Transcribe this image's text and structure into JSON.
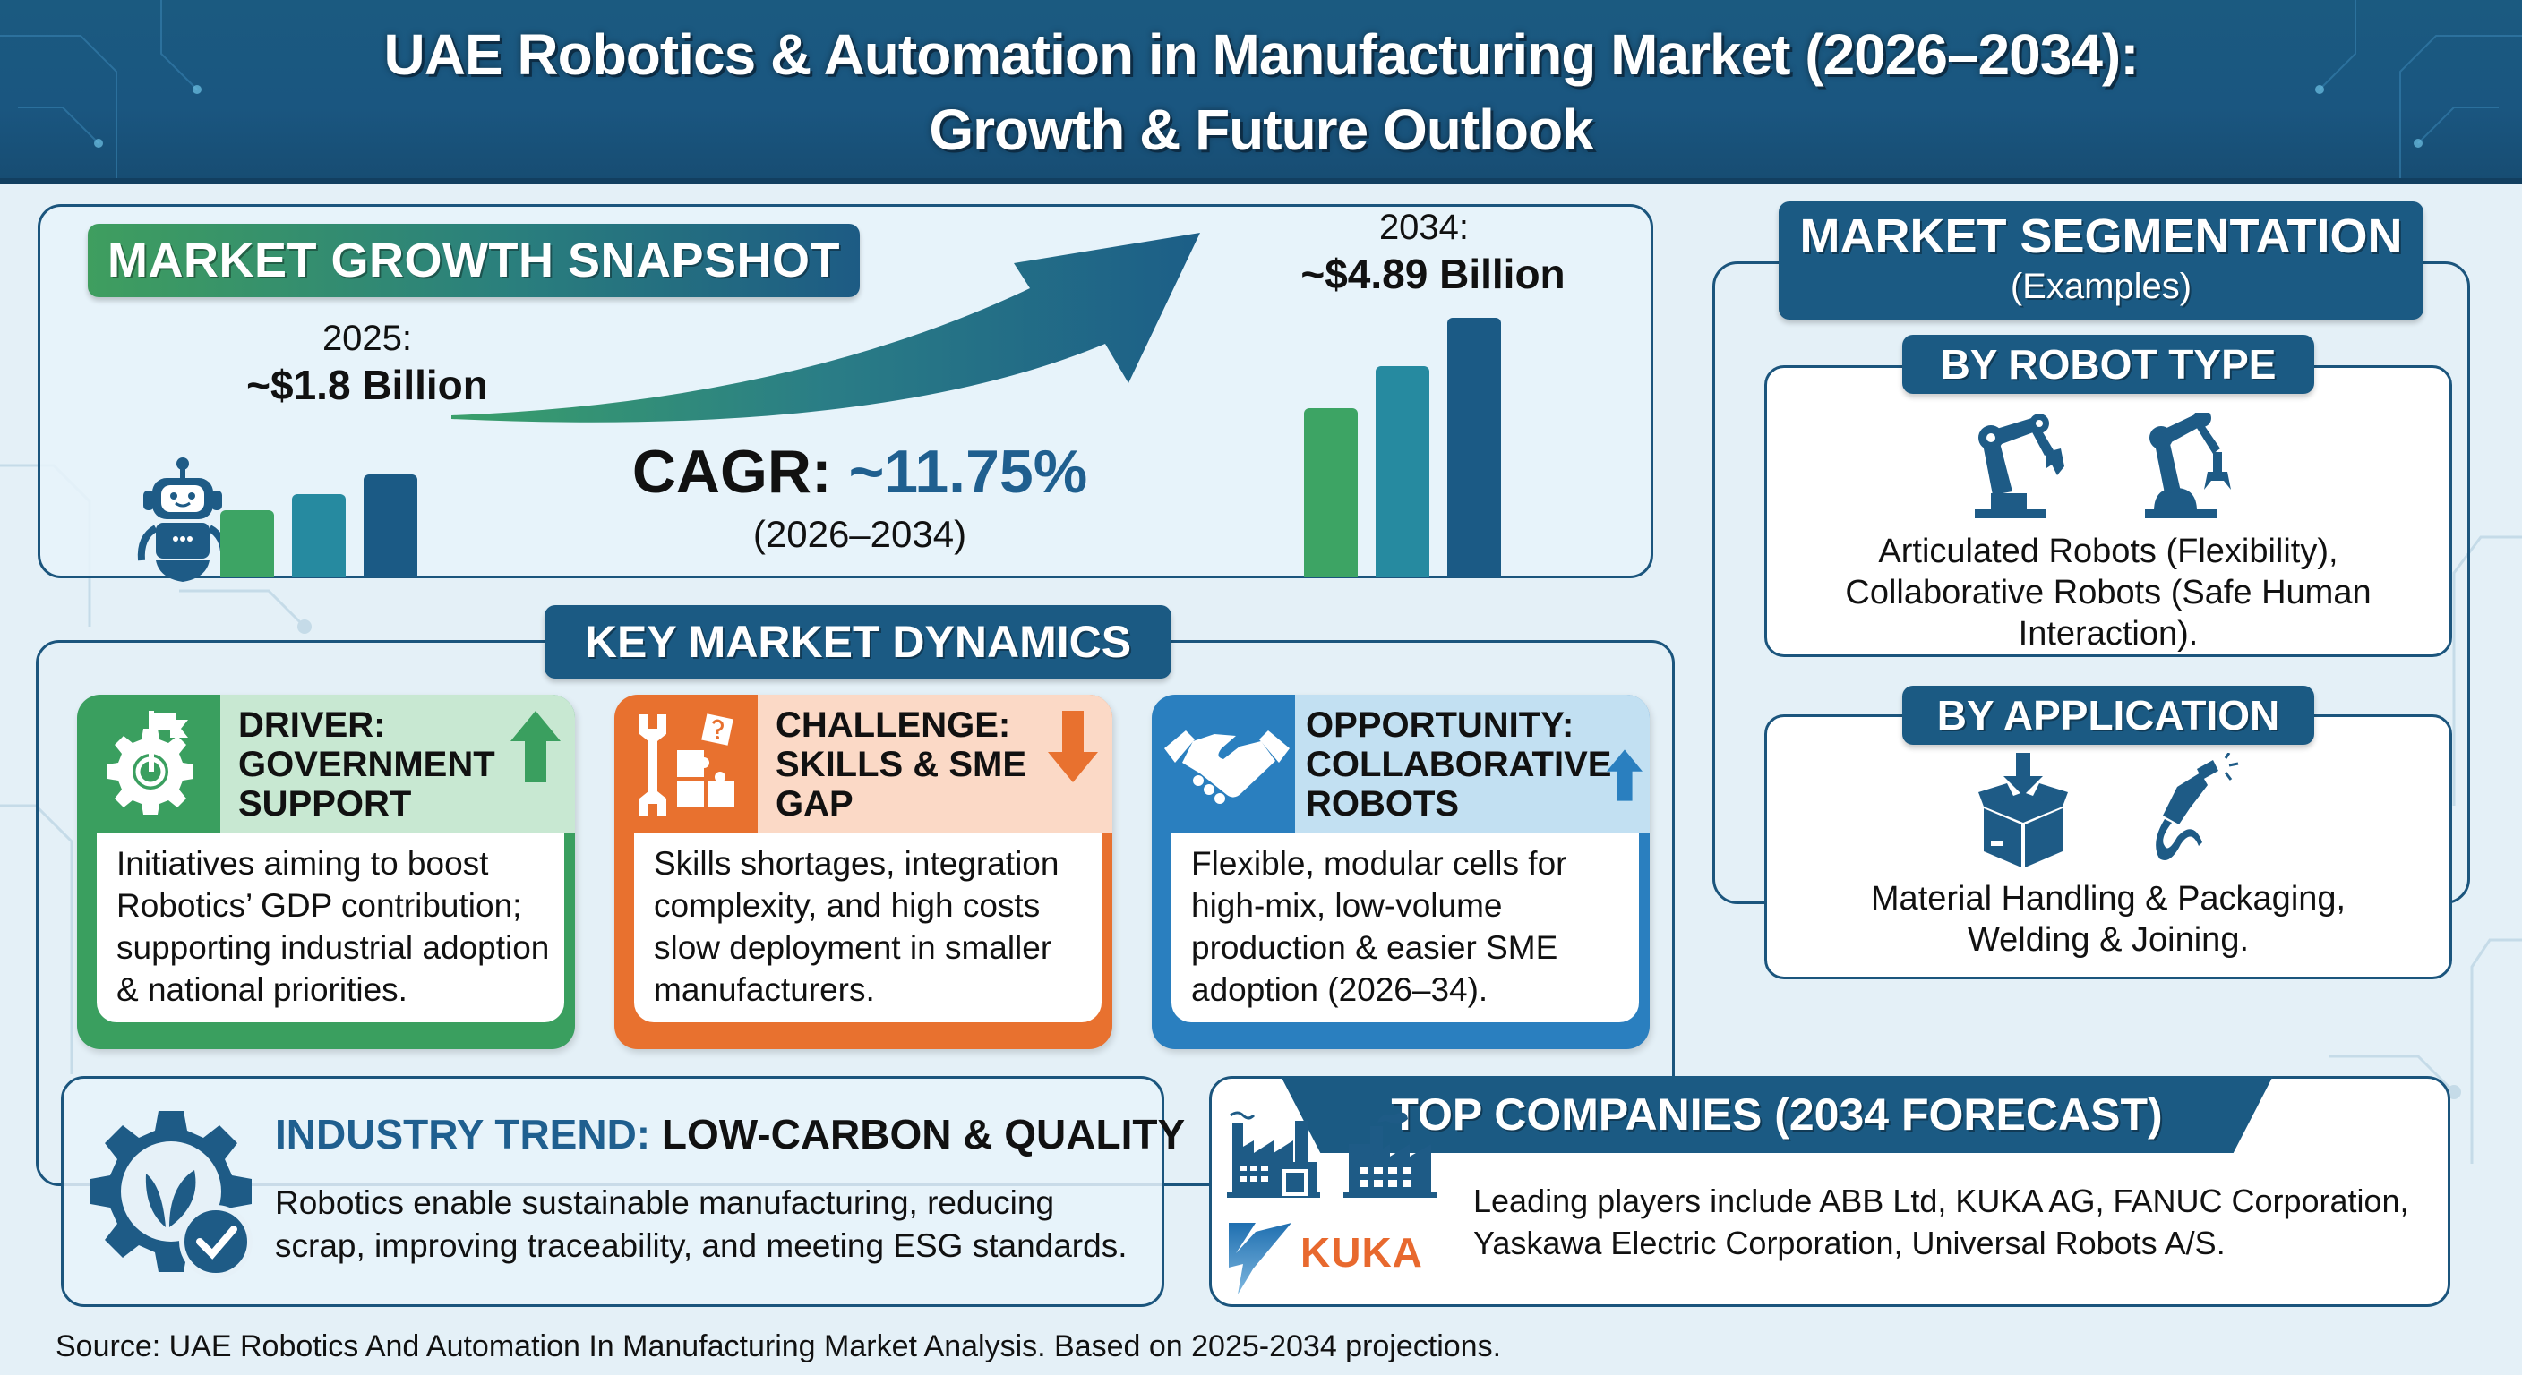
{
  "header": {
    "title_line1": "UAE Robotics & Automation in Manufacturing Market (2026–2034):",
    "title_line2": "Growth & Future Outlook"
  },
  "growth_snapshot": {
    "banner": "MARKET GROWTH SNAPSHOT",
    "start": {
      "year_label": "2025:",
      "value_label": "~$1.8 Billion",
      "value_billion_usd": 1.8
    },
    "end": {
      "year_label": "2034:",
      "value_label": "~$4.89 Billion",
      "value_billion_usd": 4.89
    },
    "cagr_label": "CAGR:",
    "cagr_value": "~11.75%",
    "cagr_period": "(2026–2034)",
    "icons": [
      "robot-icon",
      "growth-arrow-icon",
      "bar-chart-icon"
    ],
    "bar_colors": [
      "#3da464",
      "#268aa0",
      "#1b5a85"
    ]
  },
  "segmentation": {
    "title": "MARKET SEGMENTATION",
    "subtitle": "(Examples)",
    "by_robot_type": {
      "label": "BY ROBOT TYPE",
      "line1": "Articulated Robots (Flexibility),",
      "line2": "Collaborative Robots (Safe Human",
      "line3": "Interaction).",
      "icons": [
        "articulated-robot-arm-icon",
        "collaborative-robot-arm-icon"
      ]
    },
    "by_application": {
      "label": "BY APPLICATION",
      "line1": "Material Handling & Packaging,",
      "line2": "Welding & Joining.",
      "icons": [
        "package-box-icon",
        "welding-torch-icon"
      ]
    }
  },
  "dynamics": {
    "title": "KEY MARKET DYNAMICS",
    "cards": [
      {
        "type": "driver",
        "heading": [
          "DRIVER:",
          "GOVERNMENT",
          "SUPPORT"
        ],
        "trend": "up",
        "icon": "gear-flag-icon",
        "color": "#3a9f5f",
        "lines": [
          "Initiatives aiming to boost",
          "Robotics’ GDP contribution;",
          "supporting industrial adoption",
          "& national priorities."
        ]
      },
      {
        "type": "challenge",
        "heading": [
          "CHALLENGE:",
          "SKILLS & SME",
          "GAP"
        ],
        "trend": "down",
        "icon": "wrench-puzzle-icon",
        "color": "#e8712f",
        "lines": [
          "Skills shortages, integration",
          "complexity, and high costs",
          "slow deployment in smaller",
          "manufacturers."
        ]
      },
      {
        "type": "opportunity",
        "heading": [
          "OPPORTUNITY:",
          "COLLABORATIVE",
          "ROBOTS"
        ],
        "trend": "up",
        "icon": "handshake-icon",
        "color": "#2a7fbf",
        "lines": [
          "Flexible, modular cells for",
          "high-mix, low-volume",
          "production & easier SME",
          "adoption (2026–34)."
        ]
      }
    ]
  },
  "industry_trend": {
    "label": "INDUSTRY TREND:",
    "value": "LOW-CARBON & QUALITY",
    "line1": "Robotics enable sustainable manufacturing, reducing",
    "line2": "scrap, improving traceability, and meeting ESG standards.",
    "icon": "gear-leaf-check-icon"
  },
  "top_companies": {
    "title": "TOP COMPANIES (2034 FORECAST)",
    "line1": "Leading players include ABB Ltd, KUKA AG, FANUC Corporation,",
    "line2": "Yaskawa Electric Corporation, Universal Robots A/S.",
    "logo_text": "KUKA",
    "icons": [
      "factory-icon",
      "factory-icon",
      "yaskawa-logo-icon"
    ]
  },
  "source": "Source: UAE Robotics And Automation In Manufacturing Market Analysis. Based on 2025-2034 projections.",
  "colors": {
    "primary": "#1b5a83",
    "green": "#3da464",
    "teal": "#268aa0",
    "orange": "#e8712f",
    "blue": "#2a7fbf",
    "background": "#e4f0f7"
  }
}
